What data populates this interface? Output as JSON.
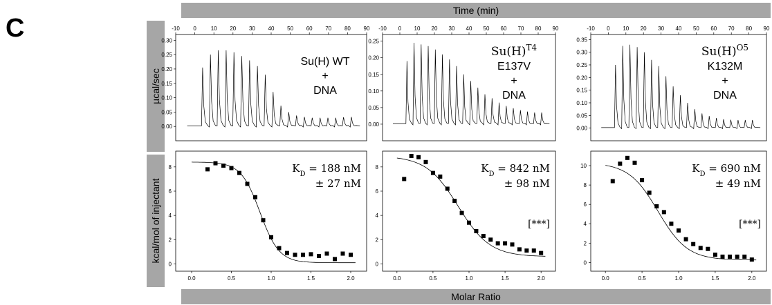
{
  "panel_label": "C",
  "top_axis_title": "Time (min)",
  "bottom_axis_title": "Molar Ratio",
  "top_ylabel": "µcal/sec",
  "bottom_ylabel": "kcal/mol of injectant",
  "chart_data": [
    {
      "type": "line",
      "title": "",
      "annotation": [
        "Su(H) WT",
        "+",
        "DNA"
      ],
      "xlabel": "Time (min)",
      "ylabel": "µcal/sec",
      "xlim": [
        -10,
        90
      ],
      "ylim": [
        -0.05,
        0.32
      ],
      "xticks": [
        -10,
        0,
        10,
        20,
        30,
        40,
        50,
        60,
        70,
        80,
        90
      ],
      "yticks": [
        0.0,
        0.05,
        0.1,
        0.15,
        0.2,
        0.25,
        0.3
      ],
      "ytick_labels": [
        "0.00",
        "0.05",
        "0.10",
        "0.15",
        "0.20",
        "0.25",
        "0.30"
      ],
      "injection_start": 3.5,
      "injection_interval": 4.1,
      "peak_heights": [
        0.205,
        0.25,
        0.265,
        0.265,
        0.258,
        0.245,
        0.23,
        0.21,
        0.18,
        0.12,
        0.072,
        0.05,
        0.038,
        0.033,
        0.03,
        0.03,
        0.03,
        0.03,
        0.032,
        0.033
      ]
    },
    {
      "type": "line",
      "title": "",
      "annotation": [
        "Su(H)T4",
        "E137V",
        "+",
        "DNA"
      ],
      "xlabel": "Time (min)",
      "ylabel": "µcal/sec",
      "xlim": [
        -10,
        90
      ],
      "ylim": [
        -0.05,
        0.27
      ],
      "xticks": [
        -10,
        0,
        10,
        20,
        30,
        40,
        50,
        60,
        70,
        80,
        90
      ],
      "yticks": [
        0.0,
        0.05,
        0.1,
        0.15,
        0.2,
        0.25
      ],
      "ytick_labels": [
        "0.00",
        "0.05",
        "0.10",
        "0.15",
        "0.20",
        "0.25"
      ],
      "injection_start": 3.5,
      "injection_interval": 4.1,
      "peak_heights": [
        0.19,
        0.245,
        0.24,
        0.235,
        0.225,
        0.21,
        0.195,
        0.175,
        0.15,
        0.13,
        0.11,
        0.09,
        0.078,
        0.065,
        0.055,
        0.048,
        0.042,
        0.038,
        0.035,
        0.035
      ]
    },
    {
      "type": "line",
      "title": "",
      "annotation": [
        "Su(H)O5",
        "K132M",
        "+",
        "DNA"
      ],
      "xlabel": "Time (min)",
      "ylabel": "µcal/sec",
      "xlim": [
        -10,
        90
      ],
      "ylim": [
        -0.05,
        0.37
      ],
      "xticks": [
        -10,
        0,
        10,
        20,
        30,
        40,
        50,
        60,
        70,
        80,
        90
      ],
      "yticks": [
        0.0,
        0.05,
        0.1,
        0.15,
        0.2,
        0.25,
        0.3,
        0.35
      ],
      "ytick_labels": [
        "0.00",
        "0.05",
        "0.10",
        "0.15",
        "0.20",
        "0.25",
        "0.30",
        "0.35"
      ],
      "injection_start": 3.5,
      "injection_interval": 4.1,
      "peak_heights": [
        0.25,
        0.325,
        0.33,
        0.32,
        0.3,
        0.27,
        0.245,
        0.205,
        0.165,
        0.13,
        0.1,
        0.075,
        0.058,
        0.048,
        0.04,
        0.035,
        0.033,
        0.032,
        0.032,
        0.032
      ]
    },
    {
      "type": "scatter",
      "title": "",
      "xlabel": "Molar Ratio",
      "ylabel": "kcal/mol of injectant",
      "xlim": [
        -0.2,
        2.2
      ],
      "ylim": [
        -0.6,
        9.3
      ],
      "xticks": [
        0.0,
        0.5,
        1.0,
        1.5,
        2.0
      ],
      "xtick_labels": [
        "0.0",
        "0.5",
        "1.0",
        "1.5",
        "2.0"
      ],
      "yticks": [
        0,
        2,
        4,
        6,
        8
      ],
      "ytick_labels": [
        "0",
        "2",
        "4",
        "6",
        "8"
      ],
      "kd_main": "KD = 188 nM",
      "kd_err": "± 27 nM",
      "significance": "",
      "x": [
        0.2,
        0.3,
        0.4,
        0.5,
        0.6,
        0.7,
        0.8,
        0.9,
        1.0,
        1.1,
        1.2,
        1.3,
        1.4,
        1.5,
        1.6,
        1.7,
        1.8,
        1.9,
        2.0
      ],
      "y": [
        7.8,
        8.3,
        8.1,
        7.9,
        7.5,
        6.6,
        5.5,
        3.6,
        2.2,
        1.3,
        0.9,
        0.75,
        0.75,
        0.8,
        0.65,
        0.85,
        0.4,
        0.85,
        0.75
      ],
      "fit": {
        "top": 8.4,
        "bottom": 0.1,
        "x50": 0.86,
        "width": 0.12
      }
    },
    {
      "type": "scatter",
      "title": "",
      "xlabel": "Molar Ratio",
      "ylabel": "kcal/mol of injectant",
      "xlim": [
        -0.2,
        2.2
      ],
      "ylim": [
        -0.6,
        9.3
      ],
      "xticks": [
        0.0,
        0.5,
        1.0,
        1.5,
        2.0
      ],
      "xtick_labels": [
        "0.0",
        "0.5",
        "1.0",
        "1.5",
        "2.0"
      ],
      "yticks": [
        0,
        2,
        4,
        6,
        8
      ],
      "ytick_labels": [
        "0",
        "2",
        "4",
        "6",
        "8"
      ],
      "kd_main": "KD = 842 nM",
      "kd_err": "± 98 nM",
      "significance": "[***]",
      "x": [
        0.1,
        0.2,
        0.3,
        0.4,
        0.5,
        0.6,
        0.7,
        0.8,
        0.9,
        1.0,
        1.1,
        1.2,
        1.3,
        1.4,
        1.5,
        1.6,
        1.7,
        1.8,
        1.9,
        2.0
      ],
      "y": [
        7.0,
        8.9,
        8.8,
        8.4,
        7.5,
        7.2,
        6.2,
        5.2,
        4.2,
        3.4,
        2.7,
        2.3,
        2.0,
        1.7,
        1.7,
        1.6,
        1.2,
        1.1,
        1.1,
        0.9
      ],
      "fit": {
        "top": 8.9,
        "bottom": 0.6,
        "x50": 0.85,
        "width": 0.22
      }
    },
    {
      "type": "scatter",
      "title": "",
      "xlabel": "Molar Ratio",
      "ylabel": "kcal/mol of injectant",
      "xlim": [
        -0.2,
        2.2
      ],
      "ylim": [
        -0.9,
        11.5
      ],
      "xticks": [
        0.0,
        0.5,
        1.0,
        1.5,
        2.0
      ],
      "xtick_labels": [
        "0.0",
        "0.5",
        "1.0",
        "1.5",
        "2.0"
      ],
      "yticks": [
        0,
        2,
        4,
        6,
        8,
        10
      ],
      "ytick_labels": [
        "0",
        "2",
        "4",
        "6",
        "8",
        "10"
      ],
      "kd_main": "KD = 690 nM",
      "kd_err": "± 49 nM",
      "significance": "[***]",
      "x": [
        0.1,
        0.2,
        0.3,
        0.4,
        0.5,
        0.6,
        0.7,
        0.8,
        0.9,
        1.0,
        1.1,
        1.2,
        1.3,
        1.4,
        1.5,
        1.6,
        1.7,
        1.8,
        1.9,
        2.0
      ],
      "y": [
        8.4,
        10.2,
        10.8,
        10.3,
        8.5,
        7.2,
        5.8,
        5.2,
        4.0,
        3.3,
        2.4,
        1.9,
        1.5,
        1.4,
        0.8,
        0.6,
        0.6,
        0.6,
        0.6,
        0.3
      ],
      "fit": {
        "top": 10.3,
        "bottom": 0.25,
        "x50": 0.72,
        "width": 0.2
      }
    }
  ]
}
